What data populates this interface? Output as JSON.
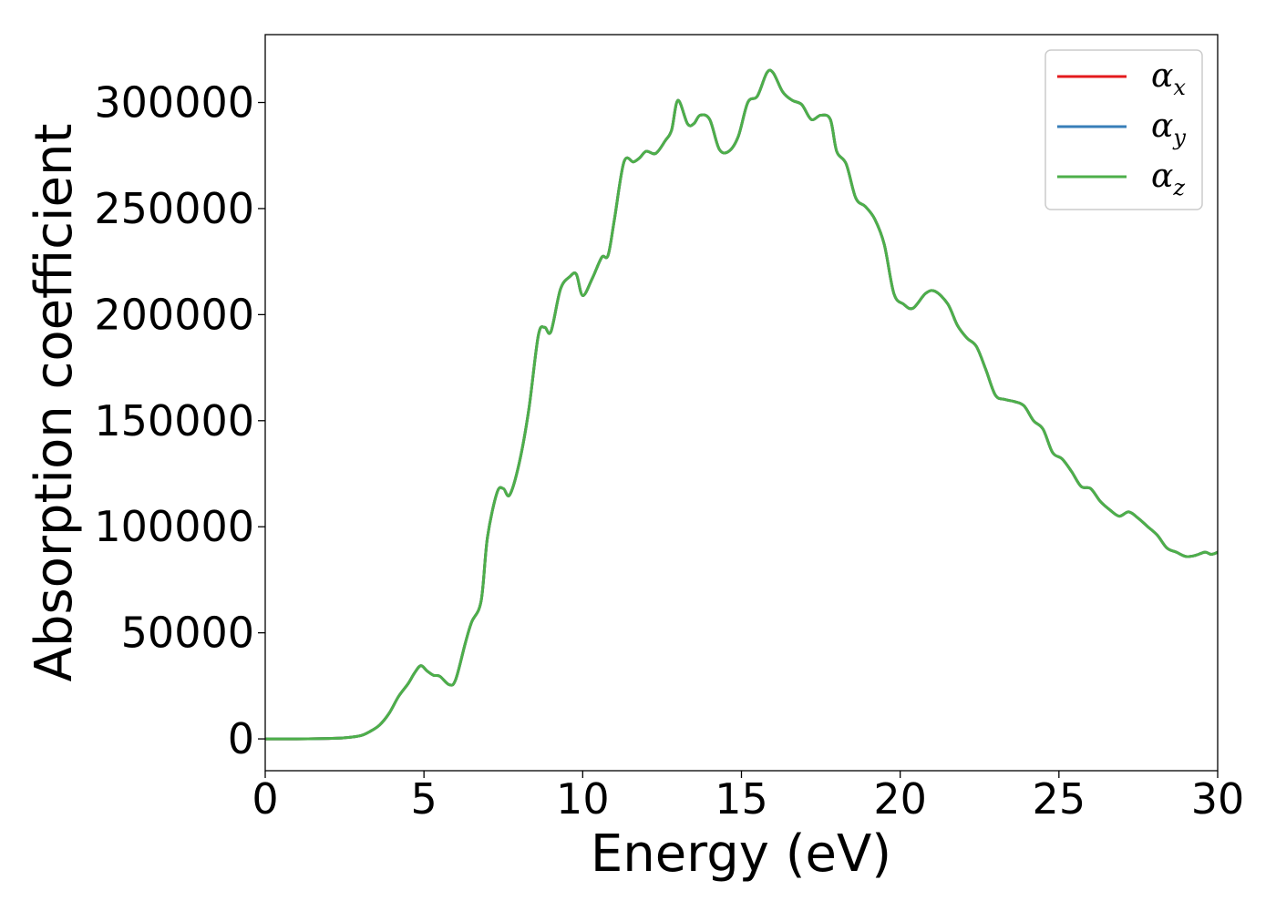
{
  "chart_data": {
    "type": "line",
    "title": "",
    "xlabel": "Energy (eV)",
    "ylabel": "Absorption coefficient",
    "xlim": [
      0,
      30
    ],
    "ylim": [
      -15000,
      332000
    ],
    "xticks": [
      {
        "value": 0,
        "label": "0"
      },
      {
        "value": 5,
        "label": "5"
      },
      {
        "value": 10,
        "label": "10"
      },
      {
        "value": 15,
        "label": "15"
      },
      {
        "value": 20,
        "label": "20"
      },
      {
        "value": 25,
        "label": "25"
      },
      {
        "value": 30,
        "label": "30"
      }
    ],
    "yticks": [
      {
        "value": 0,
        "label": "0"
      },
      {
        "value": 50000,
        "label": "50000"
      },
      {
        "value": 100000,
        "label": "100000"
      },
      {
        "value": 150000,
        "label": "150000"
      },
      {
        "value": 200000,
        "label": "200000"
      },
      {
        "value": 250000,
        "label": "250000"
      },
      {
        "value": 300000,
        "label": "300000"
      }
    ],
    "grid": false,
    "legend_position": "top-right",
    "series": [
      {
        "name": "α",
        "subscript": "x",
        "color": "#e41a1c",
        "data_ref": "shared"
      },
      {
        "name": "α",
        "subscript": "y",
        "color": "#377eb8",
        "data_ref": "shared"
      },
      {
        "name": "α",
        "subscript": "z",
        "color": "#4daf4a",
        "data_ref": "shared"
      }
    ],
    "shared_x": [
      0,
      1,
      2,
      2.5,
      3,
      3.3,
      3.6,
      3.9,
      4.2,
      4.5,
      4.7,
      4.9,
      5.1,
      5.3,
      5.5,
      5.8,
      6.0,
      6.3,
      6.5,
      6.8,
      7.0,
      7.3,
      7.5,
      7.7,
      8.0,
      8.3,
      8.6,
      8.8,
      9.0,
      9.3,
      9.6,
      9.8,
      10.0,
      10.3,
      10.6,
      10.8,
      11.0,
      11.3,
      11.6,
      11.8,
      12.0,
      12.3,
      12.6,
      12.8,
      13.0,
      13.3,
      13.5,
      13.7,
      14.0,
      14.3,
      14.6,
      14.9,
      15.2,
      15.5,
      15.8,
      16.0,
      16.3,
      16.6,
      16.9,
      17.2,
      17.5,
      17.8,
      18.0,
      18.3,
      18.6,
      18.9,
      19.2,
      19.5,
      19.8,
      20.1,
      20.4,
      20.8,
      21.1,
      21.5,
      21.8,
      22.1,
      22.4,
      22.7,
      23.0,
      23.3,
      23.6,
      23.9,
      24.2,
      24.5,
      24.8,
      25.1,
      25.4,
      25.7,
      26.0,
      26.3,
      26.6,
      26.9,
      27.2,
      27.5,
      27.8,
      28.1,
      28.4,
      28.7,
      29.0,
      29.3,
      29.6,
      29.8,
      30.0
    ],
    "shared_y": [
      0,
      0,
      200,
      500,
      1500,
      3500,
      6500,
      12000,
      20000,
      26000,
      31000,
      34500,
      32000,
      30000,
      29500,
      25500,
      28000,
      45000,
      55000,
      65000,
      95000,
      116000,
      118000,
      115000,
      130000,
      155000,
      190000,
      194000,
      192000,
      212000,
      218000,
      219000,
      209000,
      217000,
      227000,
      228000,
      245000,
      272000,
      272000,
      274000,
      277000,
      276000,
      282000,
      287000,
      301000,
      290000,
      290000,
      294000,
      292000,
      278000,
      277000,
      284000,
      300000,
      303000,
      314000,
      314000,
      305000,
      301000,
      299000,
      292000,
      294000,
      292000,
      277000,
      271000,
      255000,
      251000,
      245000,
      233000,
      210000,
      205000,
      203000,
      210000,
      211000,
      205000,
      195000,
      189000,
      185000,
      174000,
      162000,
      160000,
      159000,
      157000,
      150000,
      146000,
      135000,
      132000,
      126000,
      119000,
      118000,
      112000,
      108000,
      105000,
      107000,
      104000,
      100000,
      96000,
      90000,
      88000,
      86000,
      86500,
      88000,
      87000,
      88000
    ]
  }
}
